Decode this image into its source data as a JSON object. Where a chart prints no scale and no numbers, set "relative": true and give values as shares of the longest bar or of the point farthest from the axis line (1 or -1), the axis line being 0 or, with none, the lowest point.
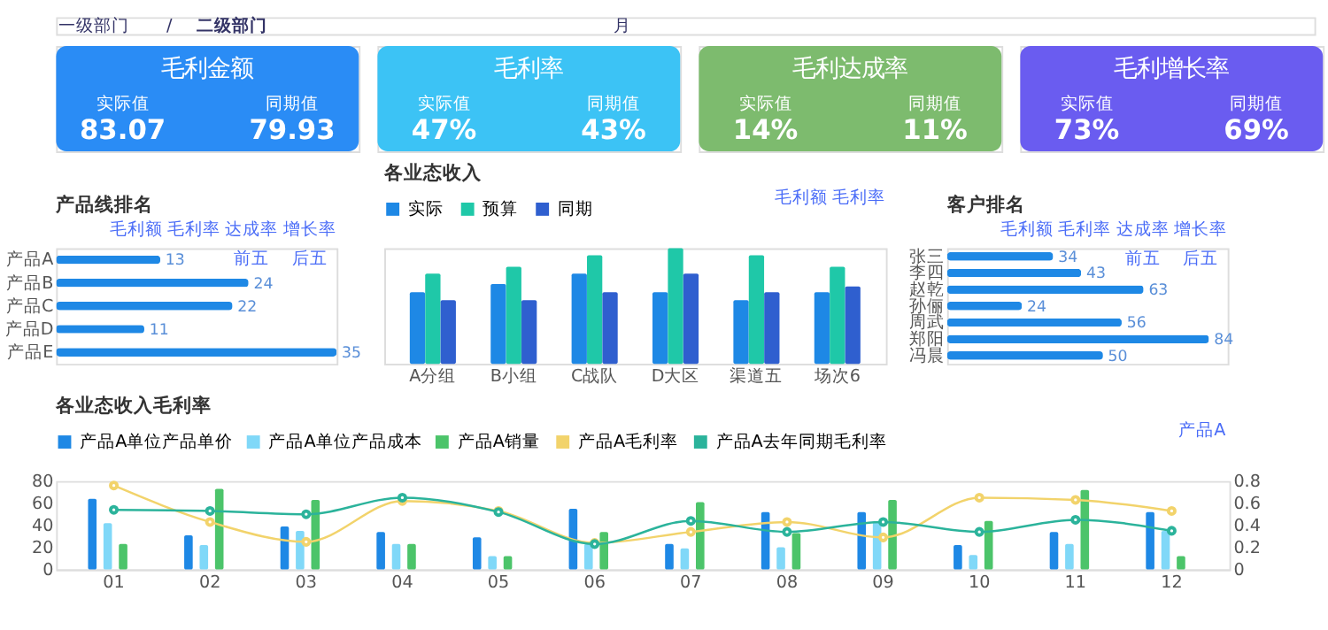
{
  "chart_data": [
    {
      "type": "other",
      "annotations": [
        "一级部门",
        "/",
        "二级部门",
        "月"
      ]
    },
    {
      "type": "other",
      "title": "毛利金额",
      "color": "#2a8cf5",
      "annotations": [
        "实际值",
        "83.07",
        "同期值",
        "79.93"
      ]
    },
    {
      "type": "other",
      "title": "毛利率",
      "color": "#3cc3f5",
      "annotations": [
        "实际值",
        "47%",
        "同期值",
        "43%"
      ]
    },
    {
      "type": "other",
      "title": "毛利达成率",
      "color": "#7dbb6e",
      "annotations": [
        "实际值",
        "14%",
        "同期值",
        "11%"
      ]
    },
    {
      "type": "other",
      "title": "毛利增长率",
      "color": "#6a5cf0",
      "annotations": [
        "实际值",
        "73%",
        "同期值",
        "69%"
      ]
    },
    {
      "type": "bar",
      "title": "产品线排名",
      "orientation": "horizontal",
      "data_labels": true,
      "color": "#1e88e5",
      "annotations": [
        "毛利额",
        "毛利率",
        "达成率",
        "增长率",
        "前五",
        "后五"
      ],
      "categories": [
        "产品A",
        "产品B",
        "产品C",
        "产品D",
        "产品E"
      ],
      "values": [
        13,
        24,
        22,
        11,
        35
      ]
    },
    {
      "type": "bar",
      "title": "各业态收入",
      "relative": true,
      "legend": "top",
      "annotations": [
        "毛利额",
        "毛利率"
      ],
      "categories": [
        "A分组",
        "B小组",
        "C战队",
        "D大区",
        "渠道五",
        "场次6"
      ],
      "series": [
        {
          "name": "实际",
          "color": "#1e88e5",
          "values": [
            0.62,
            0.69,
            0.78,
            0.62,
            0.55,
            0.62
          ]
        },
        {
          "name": "预算",
          "color": "#1fc8a8",
          "values": [
            0.78,
            0.84,
            0.94,
            1,
            0.94,
            0.84
          ]
        },
        {
          "name": "同期",
          "color": "#2f5fcf",
          "values": [
            0.55,
            0.55,
            0.62,
            0.78,
            0.62,
            0.67
          ]
        }
      ]
    },
    {
      "type": "bar",
      "title": "客户排名",
      "orientation": "horizontal",
      "data_labels": true,
      "color": "#1e88e5",
      "annotations": [
        "毛利额",
        "毛利率",
        "达成率",
        "增长率",
        "前五",
        "后五"
      ],
      "categories": [
        "张三",
        "李四",
        "赵乾",
        "孙俪",
        "周武",
        "郑阳",
        "冯晨"
      ],
      "values": [
        34,
        43,
        63,
        24,
        56,
        84,
        50
      ]
    },
    {
      "type": "bar",
      "title": "各业态收入毛利率",
      "legend": "top",
      "marker": "circle",
      "annotations": [
        "产品A"
      ],
      "categories": [
        "01",
        "02",
        "03",
        "04",
        "05",
        "06",
        "07",
        "08",
        "09",
        "10",
        "11",
        "12"
      ],
      "ylim": [
        0,
        80
      ],
      "yticks": [
        0,
        20,
        40,
        60,
        80
      ],
      "y2lim": [
        0,
        0.8
      ],
      "y2ticks": [
        0,
        0.2,
        0.4,
        0.6,
        0.8
      ],
      "series": [
        {
          "name": "产品A单位产品单价",
          "type": "bar",
          "color": "#1e88e5",
          "values": [
            64,
            31,
            39,
            34,
            29,
            55,
            23,
            52,
            52,
            22,
            34,
            52
          ]
        },
        {
          "name": "产品A单位产品成本",
          "type": "bar",
          "color": "#80d8f8",
          "values": [
            42,
            22,
            35,
            23,
            12,
            23,
            19,
            20,
            43,
            13,
            23,
            35
          ]
        },
        {
          "name": "产品A销量",
          "type": "bar",
          "color": "#4cc46a",
          "values": [
            23,
            73,
            63,
            23,
            12,
            34,
            61,
            33,
            63,
            44,
            72,
            12
          ]
        },
        {
          "name": "产品A毛利率",
          "type": "line",
          "axis": "y2",
          "color": "#f2d36b",
          "values": [
            0.76,
            0.43,
            0.25,
            0.62,
            0.53,
            0.24,
            0.34,
            0.43,
            0.29,
            0.65,
            0.63,
            0.53
          ]
        },
        {
          "name": "产品A去年同期毛利率",
          "type": "line",
          "axis": "y2",
          "color": "#2bb39b",
          "values": [
            0.54,
            0.53,
            0.5,
            0.65,
            0.52,
            0.23,
            0.44,
            0.34,
            0.43,
            0.34,
            0.45,
            0.35
          ]
        }
      ]
    }
  ]
}
